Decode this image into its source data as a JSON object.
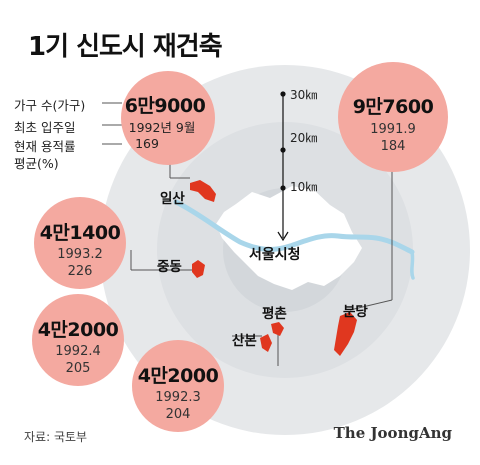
{
  "title": "1기 신도시 재건축",
  "legend": {
    "households_label": "가구 수(가구)",
    "first_move_in_label": "최초 입주일",
    "current_far_label": "현재 용적률",
    "average_label": "평균(%)"
  },
  "rings": {
    "inner": "10㎞",
    "middle": "20㎞",
    "outer": "30㎞"
  },
  "center_label": "서울시청",
  "cities": [
    {
      "name": "일산",
      "households": "6만9000",
      "move_in": "1992년 9월",
      "far": "169"
    },
    {
      "name": "분당",
      "households": "9만7600",
      "move_in": "1991.9",
      "far": "184"
    },
    {
      "name": "중동",
      "households": "4만1400",
      "move_in": "1993.2",
      "far": "226"
    },
    {
      "name": "산본",
      "households": "4만2000",
      "move_in": "1992.4",
      "far": "205"
    },
    {
      "name": "평촌",
      "households": "4만2000",
      "move_in": "1992.3",
      "far": "204"
    }
  ],
  "colors": {
    "bubble": "#f4a9a0",
    "city_fill": "#e0371f",
    "seoul_land": "#ffffff",
    "outer_ring": "#e6e8ea",
    "middle_ring": "#dde0e3",
    "inner_ring": "#d3d7db",
    "river": "#a9d6ea"
  },
  "source": "자료: 국토부",
  "brand": "The JoongAng"
}
